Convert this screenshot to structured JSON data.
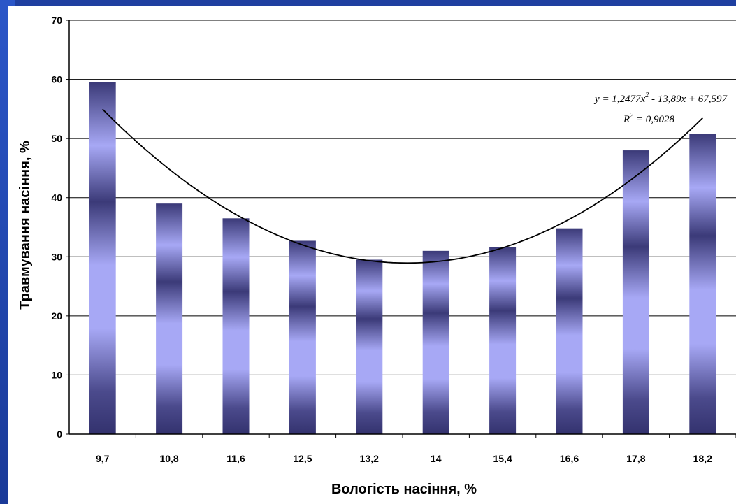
{
  "chart_data": {
    "type": "bar",
    "title": "",
    "xlabel": "Вологість насіння, %",
    "ylabel": "Травмування насіння, %",
    "categories": [
      "9,7",
      "10,8",
      "11,6",
      "12,5",
      "13,2",
      "14",
      "15,4",
      "16,6",
      "17,8",
      "18,2"
    ],
    "values": [
      59.5,
      39,
      36.5,
      32.7,
      29.5,
      31,
      31.6,
      34.8,
      48,
      50.8
    ],
    "ylim": [
      0,
      70
    ],
    "yticks": [
      0,
      10,
      20,
      30,
      40,
      50,
      60,
      70
    ],
    "grid": true,
    "trendline": {
      "type": "polynomial",
      "coefficients": [
        1.2477,
        -13.89,
        67.597
      ],
      "equation_label": "y = 1,2477x",
      "equation_exponent": "2",
      "equation_rest": " - 13,89x + 67,597",
      "r2_label": "R",
      "r2_exponent": "2",
      "r2_rest": " = 0,9028"
    },
    "colors": {
      "bar_dark": "#3b3a78",
      "bar_light": "#a7a8f5",
      "background": "#1f3fa0"
    }
  }
}
